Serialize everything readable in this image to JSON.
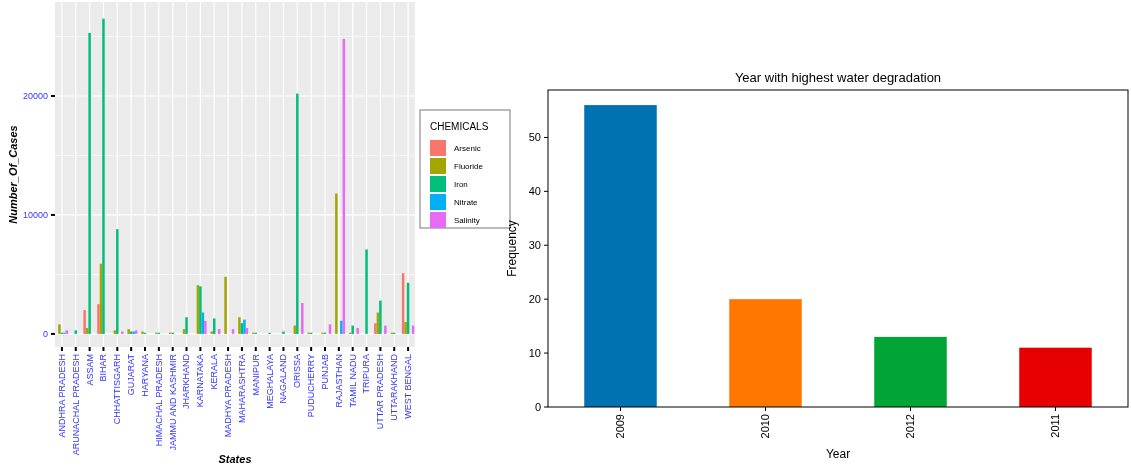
{
  "chart_data": [
    {
      "type": "bar",
      "xlabel": "States",
      "ylabel": "Number_Of_Cases",
      "legend_title": "CHEMICALS",
      "legend": "right",
      "grid": true,
      "categories": [
        "ANDHRA PRADESH",
        "ARUNACHAL PRADESH",
        "ASSAM",
        "BIHAR",
        "CHHATTISGARH",
        "GUJARAT",
        "HARYANA",
        "HIMACHAL PRADESH",
        "JAMMU AND KASHMIR",
        "JHARKHAND",
        "KARNATAKA",
        "KERALA",
        "MADHYA PRADESH",
        "MAHARASHTRA",
        "MANIPUR",
        "MEGHALAYA",
        "NAGALAND",
        "ORISSA",
        "PUDUCHERRY",
        "PUNJAB",
        "RAJASTHAN",
        "TAMIL NADU",
        "TRIPURA",
        "UTTAR PRADESH",
        "UTTARAKHAND",
        "WEST BENGAL"
      ],
      "ylim": [
        -1100,
        27900
      ],
      "yticks": [
        0,
        {
          "value": 5000,
          "label": null
        },
        10000,
        {
          "value": 15000,
          "label": null
        },
        20000,
        {
          "value": 25000,
          "label": null
        }
      ],
      "series": [
        {
          "name": "Arsenic",
          "color": "#f8766d",
          "values": [
            null,
            null,
            2000,
            2500,
            null,
            null,
            null,
            null,
            null,
            null,
            null,
            null,
            null,
            null,
            null,
            null,
            null,
            null,
            null,
            null,
            null,
            null,
            null,
            900,
            null,
            5100
          ]
        },
        {
          "name": "Fluoride",
          "color": "#a3a500",
          "values": [
            800,
            null,
            500,
            5900,
            300,
            400,
            200,
            100,
            100,
            400,
            4100,
            200,
            4800,
            1400,
            100,
            null,
            null,
            700,
            100,
            100,
            11800,
            100,
            null,
            1800,
            100,
            1000
          ]
        },
        {
          "name": "Iron",
          "color": "#00bf7d",
          "values": [
            100,
            300,
            25300,
            26500,
            8800,
            200,
            100,
            100,
            100,
            1400,
            4000,
            1300,
            null,
            900,
            100,
            100,
            200,
            20200,
            100,
            100,
            null,
            700,
            7100,
            2800,
            100,
            4300
          ]
        },
        {
          "name": "Nitrate",
          "color": "#00b0f6",
          "values": [
            100,
            null,
            null,
            null,
            null,
            200,
            null,
            null,
            null,
            null,
            1800,
            null,
            null,
            1200,
            null,
            null,
            null,
            null,
            null,
            null,
            1100,
            null,
            null,
            null,
            null,
            null
          ]
        },
        {
          "name": "Salinity",
          "color": "#e76bf3",
          "values": [
            300,
            null,
            null,
            null,
            200,
            300,
            null,
            null,
            null,
            null,
            1100,
            400,
            400,
            500,
            null,
            null,
            null,
            2600,
            null,
            800,
            24800,
            500,
            null,
            700,
            null,
            700
          ]
        }
      ]
    },
    {
      "type": "bar",
      "title": "Year with highest water degradation",
      "xlabel": "Year",
      "ylabel": "Frequency",
      "categories": [
        "2009",
        "2010",
        "2012",
        "2011"
      ],
      "values": [
        56,
        20,
        13,
        11
      ],
      "colors": [
        "#0072b2",
        "#ff7700",
        "#00a536",
        "#e60000"
      ],
      "ylim": [
        0,
        58.8
      ],
      "yticks": [
        0,
        10,
        20,
        30,
        40,
        50
      ]
    }
  ]
}
